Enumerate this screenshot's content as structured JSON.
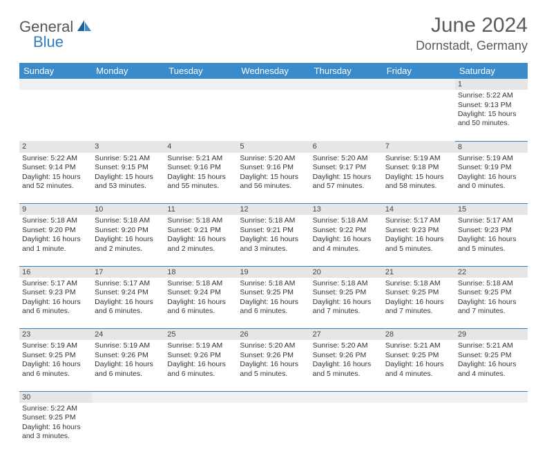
{
  "logo": {
    "text1": "General",
    "text2": "Blue"
  },
  "title": "June 2024",
  "location": "Dornstadt, Germany",
  "colors": {
    "header_bg": "#3a8bcb",
    "header_text": "#ffffff",
    "daynum_bg": "#e6e6e6",
    "border": "#2e7cc1"
  },
  "dayHeaders": [
    "Sunday",
    "Monday",
    "Tuesday",
    "Wednesday",
    "Thursday",
    "Friday",
    "Saturday"
  ],
  "weeks": [
    {
      "nums": [
        "",
        "",
        "",
        "",
        "",
        "",
        "1"
      ],
      "cells": [
        null,
        null,
        null,
        null,
        null,
        null,
        {
          "sunrise": "5:22 AM",
          "sunset": "9:13 PM",
          "daylight": "15 hours and 50 minutes."
        }
      ]
    },
    {
      "nums": [
        "2",
        "3",
        "4",
        "5",
        "6",
        "7",
        "8"
      ],
      "cells": [
        {
          "sunrise": "5:22 AM",
          "sunset": "9:14 PM",
          "daylight": "15 hours and 52 minutes."
        },
        {
          "sunrise": "5:21 AM",
          "sunset": "9:15 PM",
          "daylight": "15 hours and 53 minutes."
        },
        {
          "sunrise": "5:21 AM",
          "sunset": "9:16 PM",
          "daylight": "15 hours and 55 minutes."
        },
        {
          "sunrise": "5:20 AM",
          "sunset": "9:16 PM",
          "daylight": "15 hours and 56 minutes."
        },
        {
          "sunrise": "5:20 AM",
          "sunset": "9:17 PM",
          "daylight": "15 hours and 57 minutes."
        },
        {
          "sunrise": "5:19 AM",
          "sunset": "9:18 PM",
          "daylight": "15 hours and 58 minutes."
        },
        {
          "sunrise": "5:19 AM",
          "sunset": "9:19 PM",
          "daylight": "16 hours and 0 minutes."
        }
      ]
    },
    {
      "nums": [
        "9",
        "10",
        "11",
        "12",
        "13",
        "14",
        "15"
      ],
      "cells": [
        {
          "sunrise": "5:18 AM",
          "sunset": "9:20 PM",
          "daylight": "16 hours and 1 minute."
        },
        {
          "sunrise": "5:18 AM",
          "sunset": "9:20 PM",
          "daylight": "16 hours and 2 minutes."
        },
        {
          "sunrise": "5:18 AM",
          "sunset": "9:21 PM",
          "daylight": "16 hours and 2 minutes."
        },
        {
          "sunrise": "5:18 AM",
          "sunset": "9:21 PM",
          "daylight": "16 hours and 3 minutes."
        },
        {
          "sunrise": "5:18 AM",
          "sunset": "9:22 PM",
          "daylight": "16 hours and 4 minutes."
        },
        {
          "sunrise": "5:17 AM",
          "sunset": "9:23 PM",
          "daylight": "16 hours and 5 minutes."
        },
        {
          "sunrise": "5:17 AM",
          "sunset": "9:23 PM",
          "daylight": "16 hours and 5 minutes."
        }
      ]
    },
    {
      "nums": [
        "16",
        "17",
        "18",
        "19",
        "20",
        "21",
        "22"
      ],
      "cells": [
        {
          "sunrise": "5:17 AM",
          "sunset": "9:23 PM",
          "daylight": "16 hours and 6 minutes."
        },
        {
          "sunrise": "5:17 AM",
          "sunset": "9:24 PM",
          "daylight": "16 hours and 6 minutes."
        },
        {
          "sunrise": "5:18 AM",
          "sunset": "9:24 PM",
          "daylight": "16 hours and 6 minutes."
        },
        {
          "sunrise": "5:18 AM",
          "sunset": "9:25 PM",
          "daylight": "16 hours and 6 minutes."
        },
        {
          "sunrise": "5:18 AM",
          "sunset": "9:25 PM",
          "daylight": "16 hours and 7 minutes."
        },
        {
          "sunrise": "5:18 AM",
          "sunset": "9:25 PM",
          "daylight": "16 hours and 7 minutes."
        },
        {
          "sunrise": "5:18 AM",
          "sunset": "9:25 PM",
          "daylight": "16 hours and 7 minutes."
        }
      ]
    },
    {
      "nums": [
        "23",
        "24",
        "25",
        "26",
        "27",
        "28",
        "29"
      ],
      "cells": [
        {
          "sunrise": "5:19 AM",
          "sunset": "9:25 PM",
          "daylight": "16 hours and 6 minutes."
        },
        {
          "sunrise": "5:19 AM",
          "sunset": "9:26 PM",
          "daylight": "16 hours and 6 minutes."
        },
        {
          "sunrise": "5:19 AM",
          "sunset": "9:26 PM",
          "daylight": "16 hours and 6 minutes."
        },
        {
          "sunrise": "5:20 AM",
          "sunset": "9:26 PM",
          "daylight": "16 hours and 5 minutes."
        },
        {
          "sunrise": "5:20 AM",
          "sunset": "9:26 PM",
          "daylight": "16 hours and 5 minutes."
        },
        {
          "sunrise": "5:21 AM",
          "sunset": "9:25 PM",
          "daylight": "16 hours and 4 minutes."
        },
        {
          "sunrise": "5:21 AM",
          "sunset": "9:25 PM",
          "daylight": "16 hours and 4 minutes."
        }
      ]
    },
    {
      "nums": [
        "30",
        "",
        "",
        "",
        "",
        "",
        ""
      ],
      "cells": [
        {
          "sunrise": "5:22 AM",
          "sunset": "9:25 PM",
          "daylight": "16 hours and 3 minutes."
        },
        null,
        null,
        null,
        null,
        null,
        null
      ]
    }
  ],
  "labels": {
    "sunrise": "Sunrise:",
    "sunset": "Sunset:",
    "daylight": "Daylight:"
  }
}
